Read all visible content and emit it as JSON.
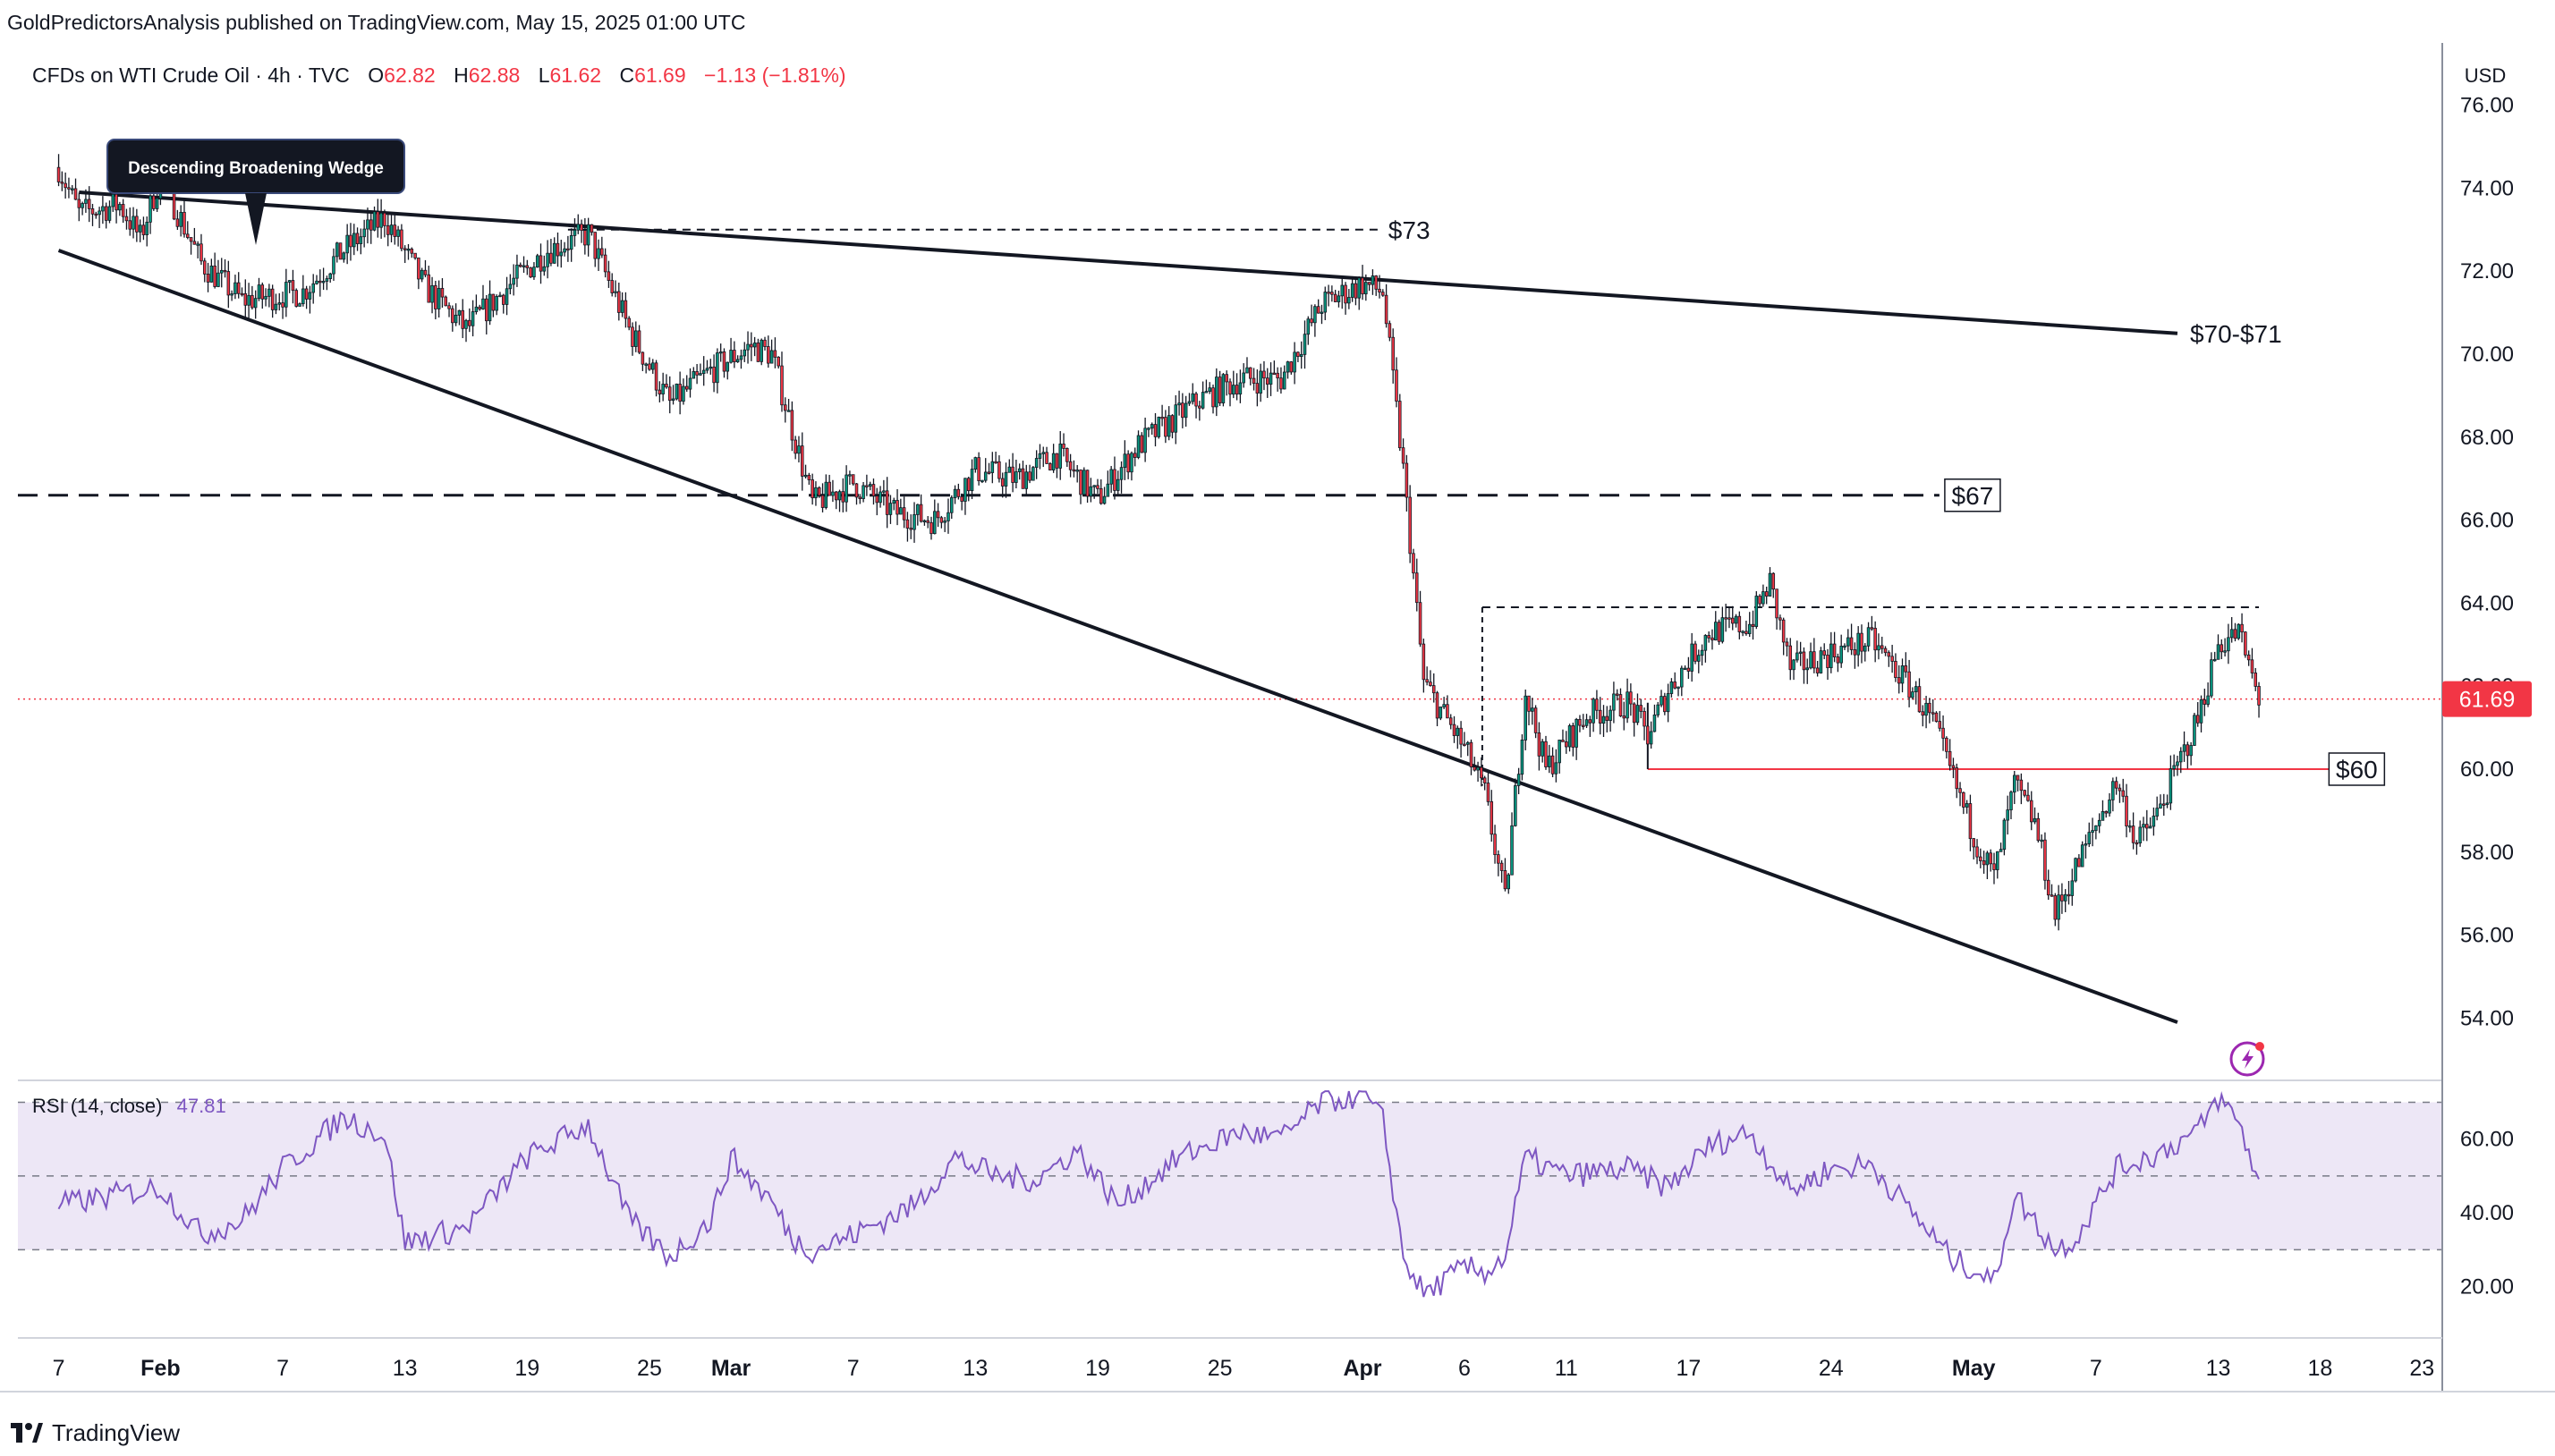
{
  "header": {
    "published_by": "GoldPredictorsAnalysis published on TradingView.com, May 15, 2025 01:00 UTC"
  },
  "legend": {
    "symbol": "CFDs on WTI Crude Oil · 4h · TVC",
    "open_label": "O",
    "open": "62.82",
    "high_label": "H",
    "high": "62.88",
    "low_label": "L",
    "low": "61.62",
    "close_label": "C",
    "close": "61.69",
    "change": "−1.13 (−1.81%)"
  },
  "currency": "USD",
  "current_price_label": "61.69",
  "colors": {
    "up": "#089981",
    "down": "#f23645",
    "rsi_line": "#7e57c2",
    "rsi_band": "#ede7f6",
    "price_line": "#f23645",
    "support_line": "#f23645"
  },
  "annotations": {
    "callout": "Descending Broadening Wedge",
    "label_73": "$73",
    "label_70_71": "$70-$71",
    "label_67": "$67",
    "label_60": "$60"
  },
  "rsi_legend": {
    "name": "RSI (14, close)",
    "value": "47.81"
  },
  "footer": {
    "brand": "TradingView"
  },
  "chart_data": {
    "type": "candlestick",
    "timeframe": "4h",
    "x_axis_labels": [
      "7",
      "Feb",
      "7",
      "13",
      "19",
      "25",
      "Mar",
      "7",
      "13",
      "19",
      "25",
      "Apr",
      "6",
      "11",
      "17",
      "24",
      "May",
      "7",
      "13",
      "18",
      "23"
    ],
    "y_axis_ticks": [
      "76.00",
      "74.00",
      "72.00",
      "70.00",
      "68.00",
      "66.00",
      "64.00",
      "62.00",
      "60.00",
      "58.00",
      "56.00",
      "54.00"
    ],
    "ylim": [
      52.5,
      77.5
    ],
    "price_path": [
      [
        "Jan 27",
        74.5
      ],
      [
        "Jan 28",
        73.4
      ],
      [
        "Jan 30",
        73.6
      ],
      [
        "Jan 31",
        72.8
      ],
      [
        "Feb 1",
        74.3
      ],
      [
        "Feb 3",
        72.2
      ],
      [
        "Feb 5",
        71.3
      ],
      [
        "Feb 8",
        71.5
      ],
      [
        "Feb 10",
        72.5
      ],
      [
        "Feb 12",
        73.3
      ],
      [
        "Feb 14",
        71.6
      ],
      [
        "Feb 16",
        70.6
      ],
      [
        "Feb 18",
        71.6
      ],
      [
        "Feb 20",
        72.5
      ],
      [
        "Feb 22",
        72.9
      ],
      [
        "Feb 24",
        70.6
      ],
      [
        "Feb 26",
        68.8
      ],
      [
        "Feb 28",
        69.6
      ],
      [
        "Mar 2",
        70.2
      ],
      [
        "Mar 3",
        70.0
      ],
      [
        "Mar 4",
        68.2
      ],
      [
        "Mar 5",
        66.4
      ],
      [
        "Mar 7",
        66.9
      ],
      [
        "Mar 9",
        66.2
      ],
      [
        "Mar 11",
        66.0
      ],
      [
        "Mar 13",
        67.2
      ],
      [
        "Mar 15",
        67.0
      ],
      [
        "Mar 17",
        67.6
      ],
      [
        "Mar 19",
        66.5
      ],
      [
        "Mar 21",
        67.8
      ],
      [
        "Mar 24",
        68.9
      ],
      [
        "Mar 26",
        69.4
      ],
      [
        "Mar 28",
        69.4
      ],
      [
        "Mar 30",
        71.2
      ],
      [
        "Apr 1",
        71.7
      ],
      [
        "Apr 2",
        71.5
      ],
      [
        "Apr 3",
        67.2
      ],
      [
        "Apr 4",
        62.1
      ],
      [
        "Apr 6",
        60.5
      ],
      [
        "Apr 7",
        59.4
      ],
      [
        "Apr 8",
        56.8
      ],
      [
        "Apr 9",
        61.9
      ],
      [
        "Apr 10",
        60.0
      ],
      [
        "Apr 12",
        61.3
      ],
      [
        "Apr 14",
        61.6
      ],
      [
        "Apr 15",
        60.8
      ],
      [
        "Apr 16",
        61.9
      ],
      [
        "Apr 18",
        63.3
      ],
      [
        "Apr 20",
        63.5
      ],
      [
        "Apr 21",
        64.5
      ],
      [
        "Apr 22",
        62.4
      ],
      [
        "Apr 24",
        62.8
      ],
      [
        "Apr 26",
        63.1
      ],
      [
        "Apr 28",
        61.9
      ],
      [
        "Apr 29",
        61.1
      ],
      [
        "May 1",
        58.4
      ],
      [
        "May 2",
        57.4
      ],
      [
        "May 3",
        59.6
      ],
      [
        "May 4",
        58.7
      ],
      [
        "May 5",
        56.5
      ],
      [
        "May 6",
        57.6
      ],
      [
        "May 8",
        59.7
      ],
      [
        "May 9",
        58.2
      ],
      [
        "May 10",
        58.9
      ],
      [
        "May 12",
        61.2
      ],
      [
        "May 13",
        63.0
      ],
      [
        "May 14",
        63.3
      ],
      [
        "May 15",
        61.69
      ]
    ],
    "trendlines": [
      {
        "name": "upper",
        "from": [
          "Jan 28",
          73.9
        ],
        "to": [
          "May 11",
          70.5
        ]
      },
      {
        "name": "lower",
        "from": [
          "Jan 27",
          72.5
        ],
        "to": [
          "May 11",
          53.9
        ]
      }
    ],
    "levels": [
      {
        "label": "$73",
        "value": 73.0,
        "style": "dashed"
      },
      {
        "label": "$67",
        "value": 66.6,
        "style": "dashed"
      },
      {
        "label": "resistance",
        "value": 63.9,
        "style": "dashed"
      },
      {
        "label": "$60",
        "value": 60.0,
        "style": "solid-red"
      }
    ],
    "rsi": {
      "name": "RSI (14, close)",
      "last": 47.81,
      "y_axis_ticks": [
        "60.00",
        "40.00",
        "20.00"
      ],
      "band": [
        30,
        70
      ],
      "mid": 50,
      "ylim": [
        8,
        74
      ],
      "path": [
        [
          "Jan 27",
          42
        ],
        [
          "Feb 1",
          47
        ],
        [
          "Feb 3",
          34
        ],
        [
          "Feb 5",
          38
        ],
        [
          "Feb 7",
          52
        ],
        [
          "Feb 10",
          66
        ],
        [
          "Feb 12",
          61
        ],
        [
          "Feb 13",
          32
        ],
        [
          "Feb 16",
          36
        ],
        [
          "Feb 19",
          55
        ],
        [
          "Feb 22",
          64
        ],
        [
          "Feb 24",
          38
        ],
        [
          "Feb 26",
          28
        ],
        [
          "Feb 28",
          38
        ],
        [
          "Mar 1",
          55
        ],
        [
          "Mar 3",
          43
        ],
        [
          "Mar 4",
          33
        ],
        [
          "Mar 5",
          30
        ],
        [
          "Mar 7",
          34
        ],
        [
          "Mar 10",
          42
        ],
        [
          "Mar 12",
          55
        ],
        [
          "Mar 14",
          50
        ],
        [
          "Mar 16",
          49
        ],
        [
          "Mar 18",
          57
        ],
        [
          "Mar 20",
          42
        ],
        [
          "Mar 23",
          55
        ],
        [
          "Mar 26",
          62
        ],
        [
          "Mar 28",
          60
        ],
        [
          "Mar 30",
          70
        ],
        [
          "Apr 1",
          72
        ],
        [
          "Apr 2",
          65
        ],
        [
          "Apr 3",
          28
        ],
        [
          "Apr 4",
          18
        ],
        [
          "Apr 6",
          25
        ],
        [
          "Apr 7",
          24
        ],
        [
          "Apr 8",
          28
        ],
        [
          "Apr 9",
          55
        ],
        [
          "Apr 11",
          50
        ],
        [
          "Apr 14",
          52
        ],
        [
          "Apr 16",
          47
        ],
        [
          "Apr 18",
          58
        ],
        [
          "Apr 20",
          62
        ],
        [
          "Apr 22",
          46
        ],
        [
          "Apr 24",
          52
        ],
        [
          "Apr 26",
          53
        ],
        [
          "Apr 28",
          40
        ],
        [
          "Apr 30",
          27
        ],
        [
          "May 1",
          25
        ],
        [
          "May 2",
          21
        ],
        [
          "May 3",
          45
        ],
        [
          "May 5",
          30
        ],
        [
          "May 6",
          33
        ],
        [
          "May 8",
          52
        ],
        [
          "May 10",
          56
        ],
        [
          "May 12",
          62
        ],
        [
          "May 13",
          71
        ],
        [
          "May 14",
          65
        ],
        [
          "May 15",
          47.81
        ]
      ]
    }
  }
}
